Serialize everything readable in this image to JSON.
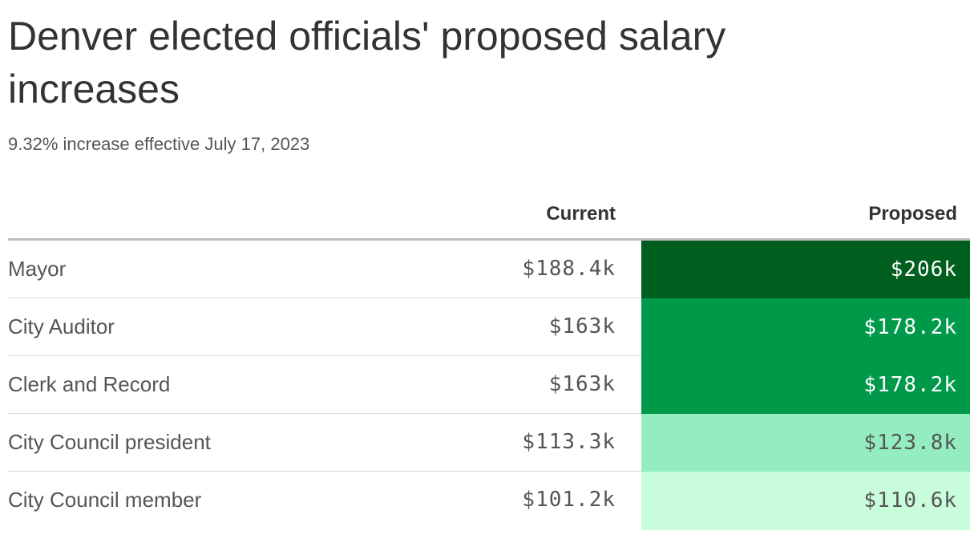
{
  "chart_data": {
    "type": "table",
    "title": "Denver elected officials' proposed salary increases",
    "subtitle": "9.32% increase effective July 17, 2023",
    "columns": [
      "",
      "Current",
      "Proposed"
    ],
    "rows": [
      {
        "name": "Mayor",
        "current": "$188.4k",
        "proposed": "$206k",
        "current_value": 188.4,
        "proposed_value": 206,
        "bg": "#005e1e",
        "fg": "#ffffff"
      },
      {
        "name": "City Auditor",
        "current": "$163k",
        "proposed": "$178.2k",
        "current_value": 163,
        "proposed_value": 178.2,
        "bg": "#00994a",
        "fg": "#ffffff"
      },
      {
        "name": "Clerk and Record",
        "current": "$163k",
        "proposed": "$178.2k",
        "current_value": 163,
        "proposed_value": 178.2,
        "bg": "#00994a",
        "fg": "#ffffff"
      },
      {
        "name": "City Council president",
        "current": "$113.3k",
        "proposed": "$123.8k",
        "current_value": 113.3,
        "proposed_value": 123.8,
        "bg": "#93edbf",
        "fg": "#555555"
      },
      {
        "name": "City Council member",
        "current": "$101.2k",
        "proposed": "$110.6k",
        "current_value": 101.2,
        "proposed_value": 110.6,
        "bg": "#c8fcdb",
        "fg": "#555555"
      }
    ]
  }
}
